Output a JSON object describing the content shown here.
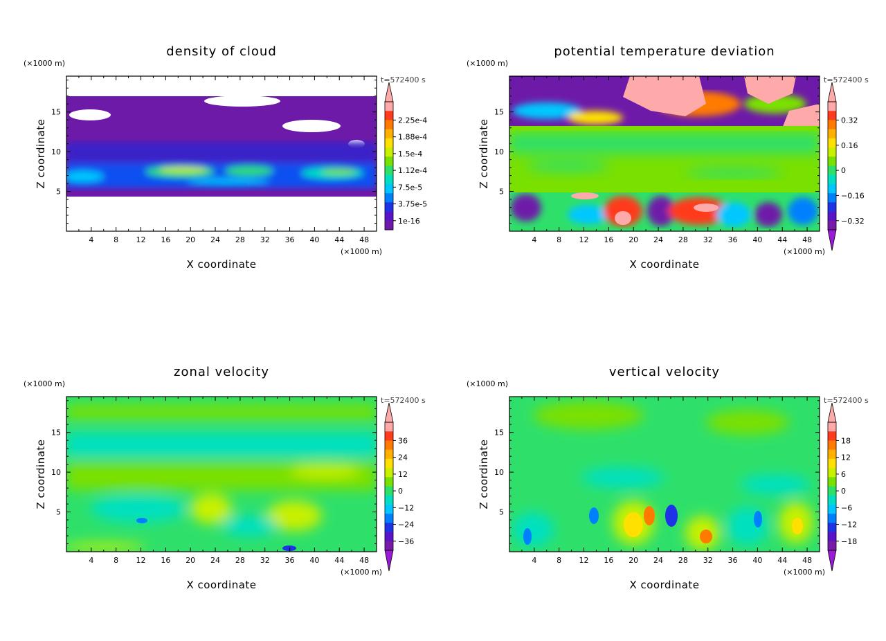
{
  "figure": {
    "background": "#ffffff"
  },
  "chart_data": [
    {
      "type": "heatmap",
      "title": "density of cloud",
      "xlabel": "X coordinate",
      "ylabel": "Z coordinate",
      "x_unit": "(×1000 m)",
      "y_unit": "(×1000 m)",
      "time_label": "t=572400 s",
      "xlim": [
        0,
        50
      ],
      "ylim": [
        0,
        19.5
      ],
      "x_ticks": [
        4,
        8,
        12,
        16,
        20,
        24,
        28,
        32,
        36,
        40,
        44,
        48
      ],
      "y_ticks": [
        5,
        10,
        15
      ],
      "x_tick_labels": [
        "4",
        "8",
        "12",
        "16",
        "20",
        "24",
        "28",
        "32",
        "36",
        "40",
        "44",
        "48"
      ],
      "y_tick_labels": [
        "5",
        "10",
        "15"
      ],
      "colorbar": {
        "labels": [
          "2.25e-4",
          "1.88e-4",
          "1.5e-4",
          "1.12e-4",
          "7.5e-5",
          "3.75e-5",
          "1e-16"
        ],
        "colors": [
          "#ffaaaa",
          "#ff3b1e",
          "#ff7a00",
          "#ffb000",
          "#ffe000",
          "#c8f000",
          "#7ae000",
          "#2ee06a",
          "#00e0c0",
          "#00c8ff",
          "#0080ff",
          "#1e32e6",
          "#5a14c8",
          "#6e1aa8"
        ],
        "top_overflow": true,
        "bottom_overflow": false
      },
      "regions": [
        {
          "z_from": 4.5,
          "z_to": 17.0,
          "level": "1e-16",
          "note": "purple cloud layer"
        },
        {
          "z_from": 5.5,
          "z_to": 9.0,
          "level": "1.12e-4",
          "note": "dense lower layer"
        }
      ]
    },
    {
      "type": "heatmap",
      "title": "potential temperature deviation",
      "xlabel": "X coordinate",
      "ylabel": "Z coordinate",
      "x_unit": "(×1000 m)",
      "y_unit": "(×1000 m)",
      "time_label": "t=572400 s",
      "xlim": [
        0,
        50
      ],
      "ylim": [
        0,
        19.5
      ],
      "x_ticks": [
        4,
        8,
        12,
        16,
        20,
        24,
        28,
        32,
        36,
        40,
        44,
        48
      ],
      "y_ticks": [
        5,
        10,
        15
      ],
      "x_tick_labels": [
        "4",
        "8",
        "12",
        "16",
        "20",
        "24",
        "28",
        "32",
        "36",
        "40",
        "44",
        "48"
      ],
      "y_tick_labels": [
        "5",
        "10",
        "15"
      ],
      "colorbar": {
        "labels": [
          "0.32",
          "0.16",
          "0",
          "−0.16",
          "−0.32"
        ],
        "colors": [
          "#ffaaaa",
          "#ff3b1e",
          "#ff7a00",
          "#ffb000",
          "#ffe000",
          "#c8f000",
          "#7ae000",
          "#2ee06a",
          "#00e0c0",
          "#00c8ff",
          "#0080ff",
          "#1e32e6",
          "#5a14c8",
          "#7a1aa8"
        ],
        "top_overflow": true,
        "bottom_overflow": true
      }
    },
    {
      "type": "heatmap",
      "title": "zonal velocity",
      "xlabel": "X coordinate",
      "ylabel": "Z coordinate",
      "x_unit": "(×1000 m)",
      "y_unit": "(×1000 m)",
      "time_label": "t=572400 s",
      "xlim": [
        0,
        50
      ],
      "ylim": [
        0,
        19.5
      ],
      "x_ticks": [
        4,
        8,
        12,
        16,
        20,
        24,
        28,
        32,
        36,
        40,
        44,
        48
      ],
      "y_ticks": [
        5,
        10,
        15
      ],
      "x_tick_labels": [
        "4",
        "8",
        "12",
        "16",
        "20",
        "24",
        "28",
        "32",
        "36",
        "40",
        "44",
        "48"
      ],
      "y_tick_labels": [
        "5",
        "10",
        "15"
      ],
      "colorbar": {
        "labels": [
          "36",
          "24",
          "12",
          "0",
          "−12",
          "−24",
          "−36"
        ],
        "colors": [
          "#ffaaaa",
          "#ff3b1e",
          "#ff7a00",
          "#ffb000",
          "#ffe000",
          "#c8f000",
          "#7ae000",
          "#2ee06a",
          "#00e0c0",
          "#00c8ff",
          "#0080ff",
          "#1e32e6",
          "#5a14c8",
          "#7a1aa8"
        ],
        "top_overflow": true,
        "bottom_overflow": true
      }
    },
    {
      "type": "heatmap",
      "title": "vertical velocity",
      "xlabel": "X coordinate",
      "ylabel": "Z coordinate",
      "x_unit": "(×1000 m)",
      "y_unit": "(×1000 m)",
      "time_label": "t=572400 s",
      "xlim": [
        0,
        50
      ],
      "ylim": [
        0,
        19.5
      ],
      "x_ticks": [
        4,
        8,
        12,
        16,
        20,
        24,
        28,
        32,
        36,
        40,
        44,
        48
      ],
      "y_ticks": [
        5,
        10,
        15
      ],
      "x_tick_labels": [
        "4",
        "8",
        "12",
        "16",
        "20",
        "24",
        "28",
        "32",
        "36",
        "40",
        "44",
        "48"
      ],
      "y_tick_labels": [
        "5",
        "10",
        "15"
      ],
      "colorbar": {
        "labels": [
          "18",
          "12",
          "6",
          "0",
          "−6",
          "−12",
          "−18"
        ],
        "colors": [
          "#ffaaaa",
          "#ff3b1e",
          "#ff7a00",
          "#ffb000",
          "#ffe000",
          "#c8f000",
          "#7ae000",
          "#2ee06a",
          "#00e0c0",
          "#00c8ff",
          "#0080ff",
          "#1e32e6",
          "#5a14c8",
          "#7a1aa8"
        ],
        "top_overflow": true,
        "bottom_overflow": true
      }
    }
  ]
}
